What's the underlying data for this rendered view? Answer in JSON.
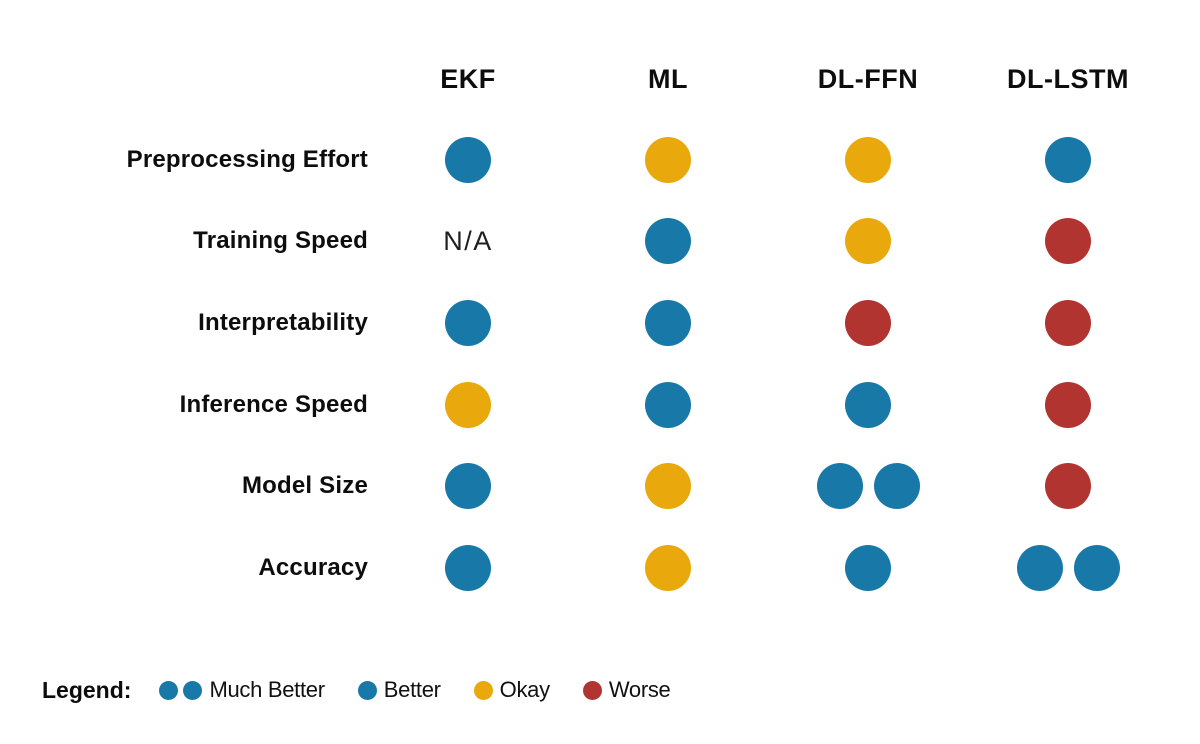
{
  "chart_data": {
    "type": "table",
    "title": "",
    "columns": [
      "EKF",
      "ML",
      "DL-FFN",
      "DL-LSTM"
    ],
    "rows": [
      "Preprocessing Effort",
      "Training Speed",
      "Interpretability",
      "Inference Speed",
      "Model Size",
      "Accuracy"
    ],
    "values": [
      [
        "better",
        "okay",
        "okay",
        "better"
      ],
      [
        "na",
        "better",
        "okay",
        "worse"
      ],
      [
        "better",
        "better",
        "worse",
        "worse"
      ],
      [
        "okay",
        "better",
        "better",
        "worse"
      ],
      [
        "better",
        "okay",
        "much_better",
        "worse"
      ],
      [
        "better",
        "okay",
        "better",
        "much_better"
      ]
    ],
    "na_label": "N/A",
    "colors": {
      "much_better": "#1878a8",
      "better": "#1878a8",
      "okay": "#e9a80c",
      "worse": "#b23431"
    },
    "legend": {
      "label": "Legend:",
      "position": "bottom-left",
      "items": [
        {
          "rating": "much_better",
          "label": "Much Better"
        },
        {
          "rating": "better",
          "label": "Better"
        },
        {
          "rating": "okay",
          "label": "Okay"
        },
        {
          "rating": "worse",
          "label": "Worse"
        }
      ]
    }
  }
}
